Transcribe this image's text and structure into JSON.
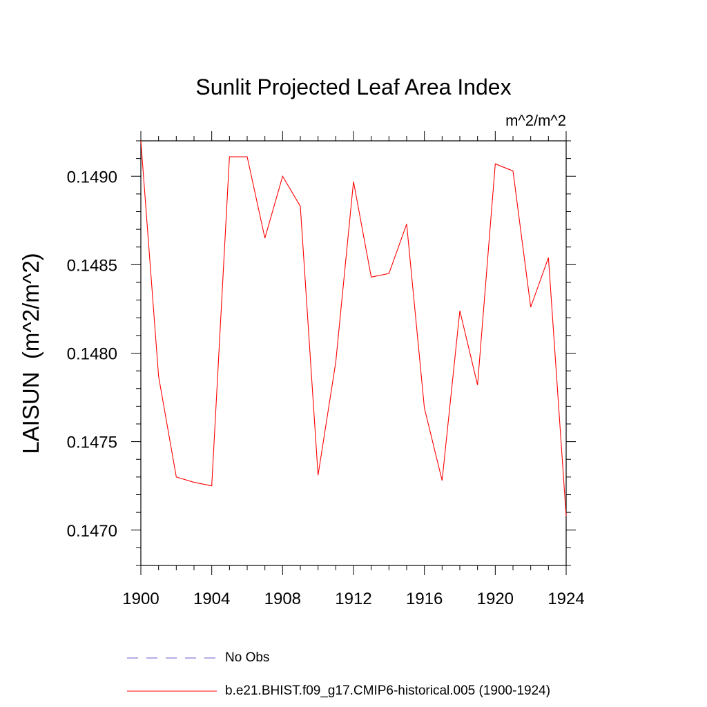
{
  "chart_data": {
    "type": "line",
    "title": "Sunlit Projected Leaf Area Index",
    "units_label": "m^2/m^2",
    "ylabel": "LAISUN  (m^2/m^2)",
    "xlabel": "",
    "xlim": [
      1900,
      1924
    ],
    "ylim": [
      0.1468,
      0.1492
    ],
    "x_ticks": [
      "1900",
      "1904",
      "1908",
      "1912",
      "1916",
      "1920",
      "1924"
    ],
    "y_ticks": [
      "0.1470",
      "0.1475",
      "0.1480",
      "0.1485",
      "0.1490"
    ],
    "grid": false,
    "legend_placement": "bottom",
    "series": [
      {
        "name": "No Obs",
        "color": "#6a5acd",
        "dash": true,
        "x": [],
        "values": []
      },
      {
        "name": "b.e21.BHIST.f09_g17.CMIP6-historical.005 (1900-1924)",
        "color": "#ff0000",
        "dash": false,
        "x": [
          1900,
          1901,
          1902,
          1903,
          1904,
          1905,
          1906,
          1907,
          1908,
          1909,
          1910,
          1911,
          1912,
          1913,
          1914,
          1915,
          1916,
          1917,
          1918,
          1919,
          1920,
          1921,
          1922,
          1923,
          1924
        ],
        "values": [
          0.1492,
          0.14787,
          0.1473,
          0.14727,
          0.14725,
          0.14911,
          0.14911,
          0.14865,
          0.149,
          0.14883,
          0.14731,
          0.14795,
          0.14897,
          0.14843,
          0.14845,
          0.14873,
          0.14769,
          0.14728,
          0.14824,
          0.14782,
          0.14907,
          0.14903,
          0.14826,
          0.14854,
          0.14708
        ]
      }
    ]
  }
}
